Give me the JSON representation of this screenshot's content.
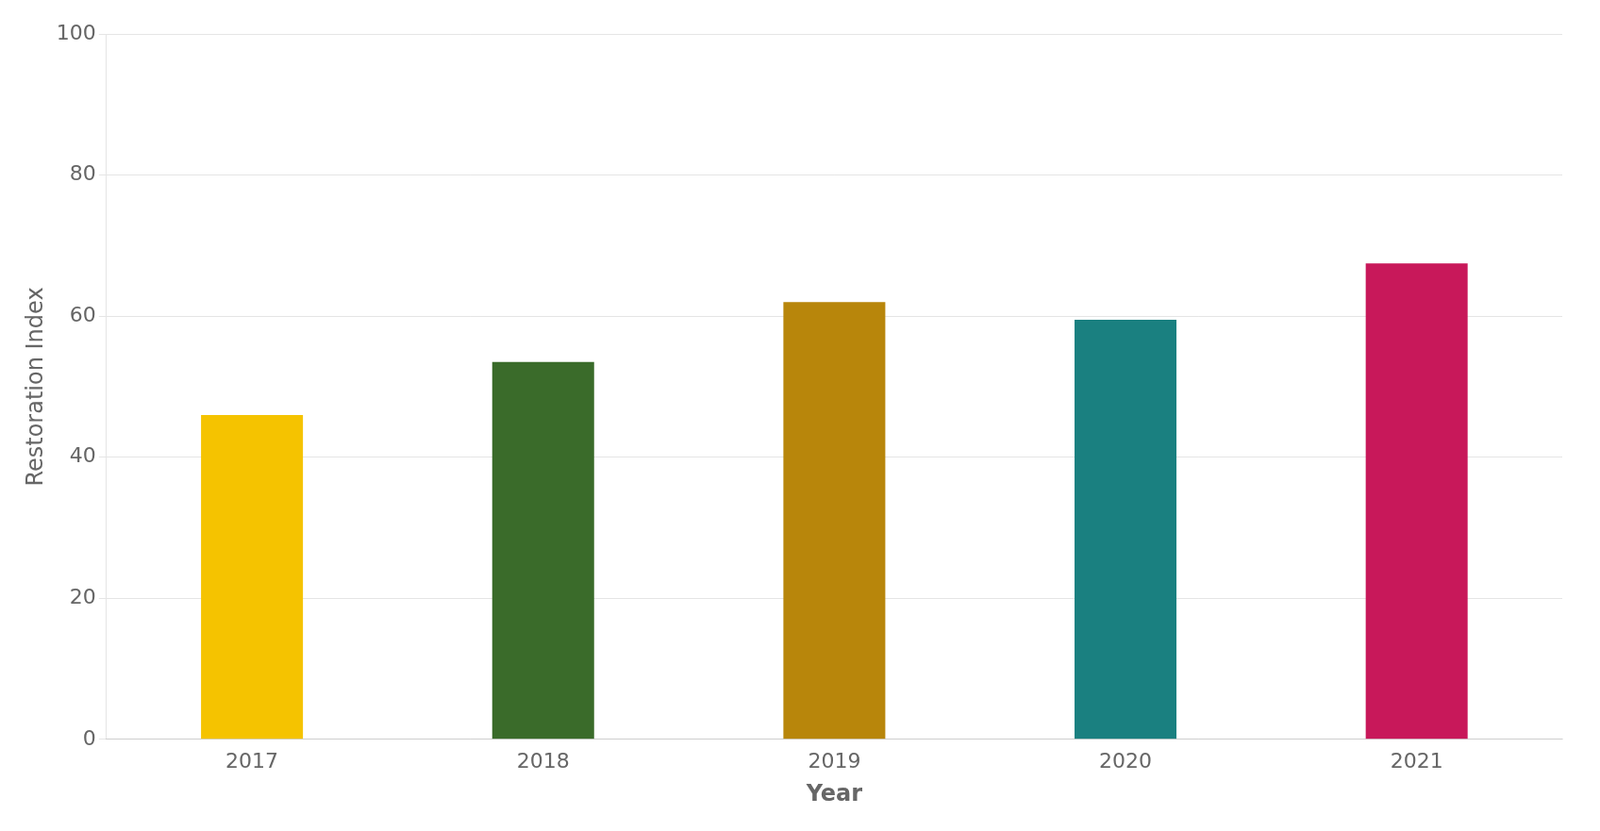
{
  "chart_data": {
    "type": "bar",
    "categories": [
      "2017",
      "2018",
      "2019",
      "2020",
      "2021"
    ],
    "values": [
      46.0,
      53.5,
      62.0,
      59.5,
      67.5
    ],
    "colors": [
      "#F5C300",
      "#3A6B2A",
      "#B8860B",
      "#1A8080",
      "#C8185A"
    ],
    "xlabel": "Year",
    "ylabel": "Restoration Index",
    "ylim": [
      0,
      100
    ],
    "yticks": [
      0,
      20,
      40,
      60,
      80,
      100
    ],
    "grid": true
  }
}
